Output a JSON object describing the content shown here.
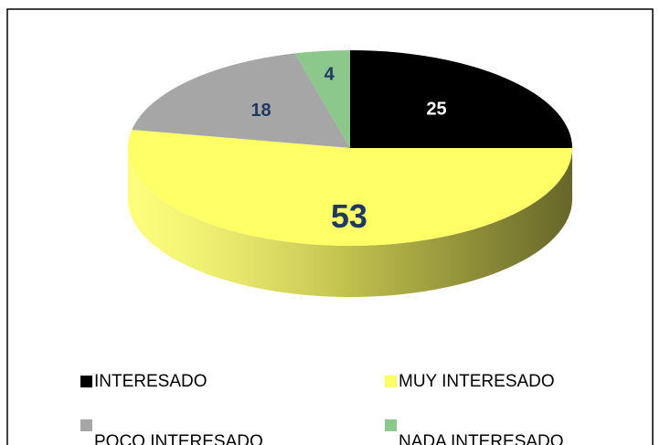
{
  "chart_data": {
    "type": "pie",
    "categories": [
      "INTERESADO",
      "MUY INTERESADO",
      "POCO INTERESADO",
      "NADA INTERESADO"
    ],
    "values": [
      25,
      53,
      18,
      4
    ],
    "colors": [
      "#000000",
      "#ffff66",
      "#a6a6a6",
      "#8cc78c"
    ],
    "label_colors": [
      "#ffffff",
      "#1f3864",
      "#1f3864",
      "#1f3864"
    ],
    "legend": "bottom"
  }
}
